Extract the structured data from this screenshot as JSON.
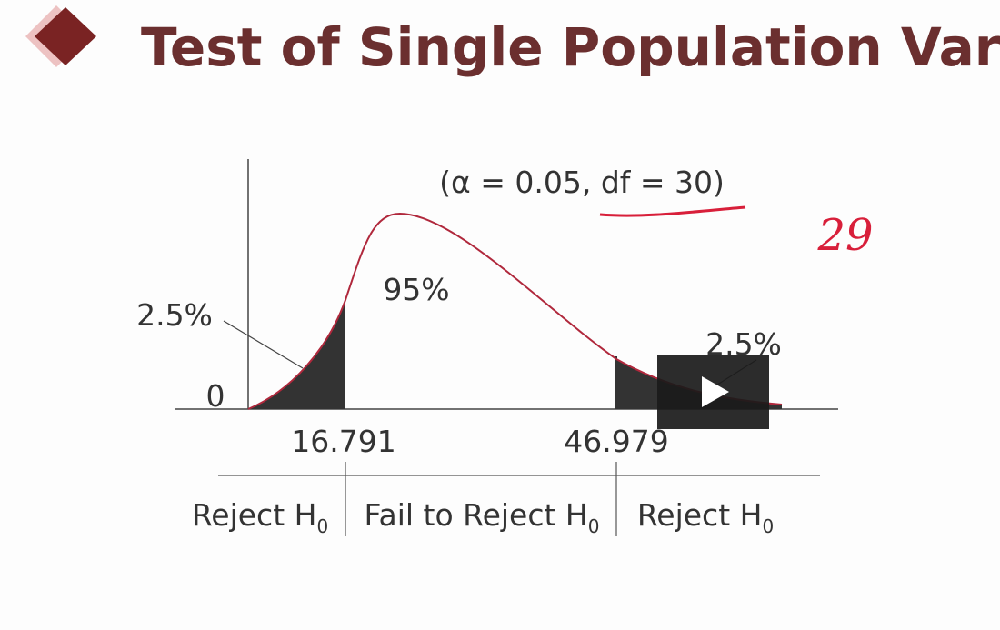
{
  "header": {
    "title": "Test of Single Population Varia"
  },
  "diagram": {
    "condition": "(α = 0.05, df = 30)",
    "annotation": "29",
    "center_area": "95%",
    "left_tail_area": "2.5%",
    "right_tail_area": "2.5%",
    "origin": "0",
    "left_critical": "16.791",
    "right_critical": "46.979",
    "regions": [
      {
        "text": "Reject H",
        "sub": "0"
      },
      {
        "text": "Fail to Reject H",
        "sub": "0"
      },
      {
        "text": "Reject H",
        "sub": "0"
      }
    ]
  }
}
